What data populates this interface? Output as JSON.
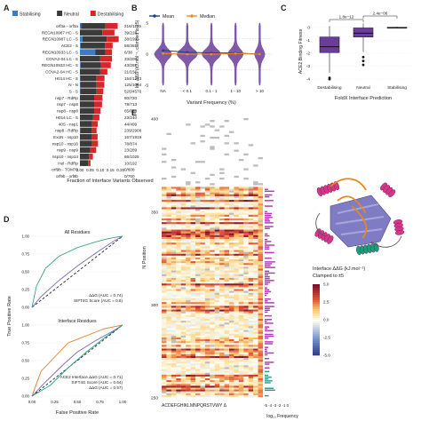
{
  "figure": {
    "panel_letters": [
      "A",
      "B",
      "C",
      "D",
      "E"
    ]
  },
  "colors": {
    "stabilising": "#3b7dc4",
    "neutral": "#3a3a3a",
    "destabilising": "#d62728",
    "mean": "#1f3f8f",
    "median": "#f08a24",
    "violin": "#6a3d9a",
    "roc_all": "#3aa58a",
    "roc_sift": "#7d6bb5",
    "roc_ace2": "#e07b26",
    "roc_sift4g_green": "#2a9d8f"
  },
  "chart_data": [
    {
      "panel": "A",
      "type": "bar",
      "orientation": "horizontal",
      "legend": [
        "Stabilising",
        "Neutral",
        "Destabilising"
      ],
      "xlabel": "Fraction of Interface Variants Observed",
      "xticks": [
        "0.00",
        "0.05",
        "0.10",
        "0.15",
        "0.20"
      ],
      "xlim": [
        0,
        0.21
      ],
      "categories": [
        "orf3a - orf3a",
        "REGN10987 HC - S",
        "REGN10987 LC - S",
        "ACE2 - S",
        "REGN10933 LC - S",
        "COVA2-04 LC - S",
        "REGN10933 HC - S",
        "COVA2-04 HC - S",
        "H014 HC - S",
        "N - N",
        "S - S",
        "nsp7 - RdRp",
        "nsp7 - nsp8",
        "nsp8 - nsp8",
        "H014 LC - S",
        "40S - nsp1",
        "nsp8 - RdRp",
        "ExoN - nsp10",
        "nsp10 - nsp16",
        "nsp9 - nsp9",
        "nsp10 - nsp14",
        "Hel - RdRp",
        "orf9b - TOM70",
        "orf9b - orf9b"
      ],
      "ratios": [
        "216/1159",
        "39/228",
        "38/199",
        "58/361",
        "6/38",
        "33/209",
        "43/282",
        "21/156",
        "154/1273",
        "125/1064",
        "526/4576",
        "80/720",
        "78/713",
        "65/644",
        "23/240",
        "44/499",
        "239/2908",
        "167/1919",
        "78/874",
        "23/289",
        "66/1025",
        "10/192",
        "0/608",
        "0/760"
      ],
      "stabilising": [
        0.006,
        0.0,
        0.012,
        0.004,
        0.075,
        0.0,
        0.004,
        0.0,
        0.002,
        0.002,
        0.002,
        0.0,
        0.0,
        0.0,
        0.0,
        0.0,
        0.002,
        0.0,
        0.0,
        0.0,
        0.0,
        0.0,
        0.0,
        0.0
      ],
      "neutral": [
        0.12,
        0.11,
        0.12,
        0.12,
        0.05,
        0.1,
        0.1,
        0.1,
        0.08,
        0.08,
        0.08,
        0.07,
        0.07,
        0.07,
        0.065,
        0.06,
        0.055,
        0.06,
        0.06,
        0.05,
        0.045,
        0.04,
        0.0,
        0.0
      ],
      "destabilising": [
        0.06,
        0.06,
        0.059,
        0.037,
        0.033,
        0.058,
        0.048,
        0.035,
        0.039,
        0.038,
        0.033,
        0.041,
        0.039,
        0.031,
        0.031,
        0.028,
        0.025,
        0.027,
        0.029,
        0.03,
        0.019,
        0.012,
        0.0,
        0.0
      ]
    },
    {
      "panel": "B",
      "type": "violin",
      "ylabel": "Int. ΔΔG (kJ.mol⁻¹, clamped to ±5)",
      "xlabel": "Variant Frequency (%)",
      "legend": [
        "Mean",
        "Median"
      ],
      "categories": [
        "NA",
        "< 0.1",
        "0.1 - 1",
        "1 - 10",
        "> 10"
      ],
      "yticks": [
        "-5",
        "0",
        "5"
      ],
      "ylim": [
        -5,
        5
      ],
      "mean": [
        0.6,
        0.3,
        0.2,
        0.2,
        0.0
      ],
      "median": [
        0.1,
        0.0,
        0.0,
        0.1,
        0.0
      ]
    },
    {
      "panel": "C",
      "type": "box",
      "ylabel": "ACE2 Binding Fitness",
      "xlabel": "FoldX Interface Prediction",
      "categories": [
        "Destabilising",
        "Neutral",
        "Stabilising"
      ],
      "yticks": [
        "-4",
        "-3",
        "-2",
        "-1",
        "0"
      ],
      "ylim": [
        -4.2,
        0.6
      ],
      "q1": [
        -1.95,
        -0.75,
        -0.05
      ],
      "median": [
        -1.5,
        -0.45,
        -0.02
      ],
      "q3": [
        -0.75,
        -0.05,
        0.0
      ],
      "lower_whisker": [
        -3.5,
        -1.9,
        -0.08
      ],
      "upper_whisker": [
        0.1,
        0.3,
        0.05
      ],
      "outliers": [
        [
          -3.9,
          -4.0
        ],
        [
          -2.3,
          -2.6,
          -2.9
        ],
        []
      ],
      "significance": [
        {
          "pair": [
            0,
            1
          ],
          "label": "1.8e−12"
        },
        {
          "pair": [
            1,
            2
          ],
          "label": "2.4e−06"
        }
      ]
    },
    {
      "panel": "D-top",
      "type": "line",
      "title": "All Residues",
      "xlabel": "False Positive Rate",
      "ylabel": "True Positive Rate",
      "xticks": [
        "0.00",
        "0.25",
        "0.50",
        "0.75",
        "1.00"
      ],
      "yticks": [
        "0.00",
        "0.25",
        "0.50",
        "0.75",
        "1.00"
      ],
      "series": [
        {
          "name": "ΔΔG (AUC = 0.74)",
          "x": [
            0,
            0.05,
            0.15,
            0.3,
            0.5,
            0.7,
            0.85,
            1.0
          ],
          "y": [
            0,
            0.3,
            0.55,
            0.72,
            0.84,
            0.92,
            0.97,
            1.0
          ]
        },
        {
          "name": "SIFT4G Score (AUC = 0.6)",
          "x": [
            0,
            0.1,
            0.3,
            0.5,
            0.7,
            0.9,
            1.0
          ],
          "y": [
            0,
            0.15,
            0.38,
            0.58,
            0.76,
            0.93,
            1.0
          ]
        }
      ]
    },
    {
      "panel": "D-bottom",
      "type": "line",
      "title": "Interface Residues",
      "xlabel": "False Positive Rate",
      "xticks": [
        "0.00",
        "0.25",
        "0.50",
        "0.75",
        "1.00"
      ],
      "yticks": [
        "0.00",
        "0.25",
        "0.50",
        "0.75",
        "1.00"
      ],
      "series": [
        {
          "name": "ACE2 Interface ΔΔG (AUC = 0.71)",
          "x": [
            0,
            0.1,
            0.25,
            0.4,
            0.6,
            0.8,
            1.0
          ],
          "y": [
            0,
            0.35,
            0.55,
            0.75,
            0.85,
            0.95,
            1.0
          ]
        },
        {
          "name": "SIFT4G Score (AUC = 0.64)",
          "x": [
            0,
            0.15,
            0.35,
            0.5,
            0.7,
            0.9,
            1.0
          ],
          "y": [
            0,
            0.2,
            0.45,
            0.62,
            0.78,
            0.92,
            1.0
          ]
        },
        {
          "name": "ΔΔG (AUC = 0.57)",
          "x": [
            0,
            0.2,
            0.4,
            0.6,
            0.8,
            1.0
          ],
          "y": [
            0,
            0.15,
            0.4,
            0.62,
            0.82,
            1.0
          ]
        }
      ]
    },
    {
      "panel": "E",
      "type": "heatmap",
      "xlabel_left": "ACDEFGHIKLMNPQRSTVWY Δ",
      "xlabel_right": "-5 -4 -3 -2 -1 0",
      "xlabel_freq": "log₁₀ Frequency",
      "ylabel": "N Position",
      "yticks": [
        "400",
        "350",
        "300",
        "250"
      ],
      "ylim": [
        250,
        400
      ],
      "amino_acids": [
        "A",
        "C",
        "D",
        "E",
        "F",
        "G",
        "H",
        "I",
        "K",
        "L",
        "M",
        "N",
        "P",
        "Q",
        "R",
        "S",
        "T",
        "V",
        "W",
        "Y",
        "Δ"
      ],
      "colorbar_title": "Interface ΔΔG (kJ.mol⁻¹)",
      "colorbar_subtitle": "Clamped to ±5",
      "colorbar_ticks": [
        "5.0",
        "2.5",
        "0.0",
        "-2.5",
        "-5.0"
      ]
    }
  ]
}
